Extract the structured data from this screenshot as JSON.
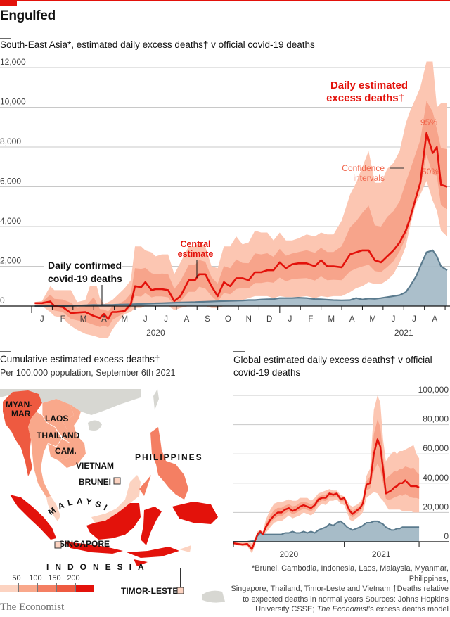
{
  "header": {
    "title": "Engulfed",
    "brand": "The Economist"
  },
  "main_chart_title": "South-East Asia*, estimated daily excess deaths† v official covid-19 deaths",
  "map": {
    "title": "Cumulative estimated excess deaths†",
    "subtitle": "Per 100,000 population, September 6th 2021",
    "labels": {
      "myanmar1": "MYAN-",
      "myanmar2": "MAR",
      "laos": "LAOS",
      "thailand": "THAILAND",
      "cambodia": "CAM.",
      "vietnam": "VIETNAM",
      "philippines": "PHILIPPINES",
      "brunei": "BRUNEI",
      "malaysia": "MALAYSIA",
      "singapore": "SINGAPORE",
      "indonesia": "INDONESIA",
      "timor": "TIMOR-LESTE"
    },
    "legend": {
      "ticks": [
        "50",
        "100",
        "150",
        "200"
      ],
      "colors": [
        "#fcd3c1",
        "#f9a88b",
        "#f47f63",
        "#ee5a40",
        "#e3120b"
      ]
    },
    "colors": {
      "land_other": "#d7d7d2",
      "myanmar": "#ee5a40",
      "laos": "#f9a88b",
      "thailand": "#f9a88b",
      "cambodia": "#f9a88b",
      "vietnam": "#f9a88b",
      "philippines": "#f47f63",
      "malaysia": "#fcd3c1",
      "indonesia": "#e3120b",
      "brunei": "#fcd3c1",
      "singapore": "#fcd3c1",
      "timor": "#fcd3c1"
    }
  },
  "footnote": {
    "line1": "*Brunei, Cambodia, Indonesia, Laos, Malaysia, Myanmar, Philippines,",
    "line2": "Singapore, Thailand, Timor-Leste and Vietnam   †Deaths relative",
    "line3": "to expected deaths in normal years   Sources: Johns Hopkins",
    "line4a": "University CSSE; ",
    "line4b": "The Economist",
    "line4c": "’s excess deaths model"
  },
  "chart_data": [
    {
      "type": "line",
      "id": "sea",
      "title": "South-East Asia*, estimated daily excess deaths† v official covid-19 deaths",
      "ylim": [
        -1000,
        12500
      ],
      "yticks": [
        0,
        2000,
        4000,
        6000,
        8000,
        10000,
        12000
      ],
      "ytick_labels": [
        "0",
        "2,000",
        "4,000",
        "6,000",
        "8,000",
        "10,000",
        "12,000"
      ],
      "x_unit": "months since Jan 2020",
      "xlim": [
        0,
        20.1
      ],
      "month_labels": [
        "J",
        "F",
        "M",
        "A",
        "M",
        "J",
        "J",
        "A",
        "S",
        "O",
        "N",
        "D",
        "J",
        "F",
        "M",
        "A",
        "M",
        "J",
        "J",
        "A"
      ],
      "year_labels": [
        {
          "label": "2020",
          "at": 6
        },
        {
          "label": "2021",
          "at": 18
        }
      ],
      "annotations": {
        "central": [
          "Central",
          "estimate"
        ],
        "confirmed": [
          "Daily confirmed",
          "covid-19 deaths"
        ],
        "excess": [
          "Daily estimated",
          "excess deaths†"
        ],
        "ci": [
          "Confidence",
          "intervals"
        ],
        "p95": "95%",
        "p50": "50%"
      },
      "colors": {
        "central": "#e3120b",
        "ci95": "#fcc6b2",
        "ci50": "#f7a48b",
        "official_fill": "#a7bcc8",
        "official_line": "#5b7b8e",
        "grid": "#c8c8c8"
      },
      "series": [
        {
          "name": "Central estimate",
          "x": [
            0.15,
            0.5,
            0.9,
            1.1,
            1.5,
            1.9,
            2.2,
            2.6,
            3.0,
            3.3,
            3.5,
            3.7,
            3.9,
            4.1,
            4.5,
            4.8,
            5.0,
            5.3,
            5.5,
            5.8,
            6.0,
            6.3,
            6.6,
            6.9,
            7.2,
            7.6,
            7.9,
            8.1,
            8.4,
            8.7,
            9.0,
            9.3,
            9.6,
            9.9,
            10.2,
            10.5,
            10.8,
            11.1,
            11.4,
            11.7,
            12.0,
            12.3,
            12.6,
            12.9,
            13.3,
            13.7,
            14.0,
            14.3,
            14.6,
            15.0,
            15.4,
            15.7,
            16.0,
            16.3,
            16.6,
            16.9,
            17.2,
            17.5,
            17.8,
            18.1,
            18.3,
            18.6,
            18.8,
            19.1,
            19.4,
            19.6,
            19.8,
            20.1
          ],
          "values": [
            150,
            150,
            230,
            0,
            -50,
            -350,
            -330,
            -300,
            -500,
            -600,
            -400,
            -650,
            -300,
            -300,
            -250,
            100,
            1000,
            950,
            1200,
            800,
            850,
            850,
            800,
            250,
            500,
            1300,
            1300,
            1600,
            1600,
            1000,
            500,
            1200,
            1000,
            1400,
            1400,
            1300,
            1700,
            1700,
            1800,
            1800,
            2200,
            1900,
            2100,
            2150,
            2150,
            2000,
            2300,
            2000,
            2000,
            1950,
            2600,
            2700,
            2800,
            2800,
            2300,
            2200,
            2500,
            2800,
            3200,
            3800,
            4400,
            5500,
            6200,
            8700,
            7700,
            8000,
            6100,
            6000
          ]
        },
        {
          "name": "95% upper",
          "values": [
            200,
            250,
            1000,
            800,
            800,
            800,
            200,
            300,
            1600,
            400,
            100,
            200,
            300,
            500,
            900,
            1300,
            3000,
            3000,
            2800,
            2700,
            2500,
            2600,
            2600,
            1600,
            2200,
            3000,
            3000,
            3200,
            3000,
            2000,
            1900,
            3000,
            3000,
            3500,
            3100,
            3200,
            3800,
            3700,
            3700,
            3300,
            3700,
            3300,
            3300,
            3400,
            3600,
            3500,
            3700,
            3600,
            3600,
            4300,
            5600,
            6200,
            7000,
            7800,
            6200,
            6200,
            6900,
            7200,
            7800,
            9200,
            9800,
            10500,
            11000,
            12300,
            12300,
            10000,
            10200,
            10200
          ]
        },
        {
          "name": "95% lower",
          "values": [
            100,
            0,
            -300,
            -500,
            -600,
            -1000,
            -1200,
            -1400,
            -1500,
            -1600,
            -1700,
            -1600,
            -1200,
            -900,
            -400,
            -300,
            -100,
            -100,
            0,
            0,
            50,
            50,
            0,
            -200,
            -100,
            0,
            0,
            200,
            0,
            -100,
            -100,
            0,
            100,
            200,
            300,
            400,
            500,
            500,
            500,
            400,
            500,
            450,
            450,
            450,
            500,
            400,
            500,
            450,
            500,
            500,
            700,
            900,
            1000,
            1200,
            1100,
            1100,
            1300,
            1600,
            2200,
            3000,
            4000,
            5200,
            5600,
            6300,
            5300,
            4800,
            3800,
            3500
          ]
        },
        {
          "name": "Official covid-19 deaths",
          "values": [
            0,
            0,
            0,
            0,
            0,
            10,
            20,
            40,
            60,
            50,
            60,
            60,
            60,
            70,
            80,
            90,
            100,
            110,
            120,
            130,
            140,
            150,
            160,
            170,
            180,
            190,
            200,
            210,
            220,
            230,
            240,
            250,
            260,
            270,
            280,
            300,
            300,
            330,
            340,
            350,
            400,
            400,
            400,
            420,
            400,
            350,
            340,
            320,
            300,
            290,
            300,
            400,
            330,
            380,
            360,
            400,
            450,
            500,
            550,
            700,
            1000,
            1500,
            2000,
            2700,
            2800,
            2500,
            2000,
            1800
          ]
        }
      ]
    },
    {
      "type": "line",
      "id": "global",
      "title": "Global estimated daily excess deaths† v official covid-19 deaths",
      "ylim": [
        -5000,
        102000
      ],
      "yticks": [
        0,
        20000,
        40000,
        60000,
        80000,
        100000
      ],
      "ytick_labels": [
        "0",
        "20,000",
        "40,000",
        "60,000",
        "80,000",
        "100,000"
      ],
      "xlim": [
        0,
        20.4
      ],
      "year_labels": [
        {
          "label": "2020",
          "at": 6
        },
        {
          "label": "2021",
          "at": 16
        }
      ],
      "series": [
        {
          "name": "Central estimate",
          "x": [
            0,
            1,
            1.5,
            2,
            2.3,
            2.6,
            2.9,
            3.2,
            3.5,
            4.0,
            4.4,
            4.8,
            5.2,
            5.6,
            6.0,
            6.4,
            6.8,
            7.2,
            7.6,
            8.0,
            8.4,
            8.8,
            9.2,
            9.6,
            10.0,
            10.4,
            10.8,
            11.2,
            11.6,
            12.0,
            12.3,
            12.6,
            12.9,
            13.3,
            13.7,
            14.0,
            14.4,
            14.8,
            15.2,
            15.6,
            15.9,
            16.2,
            16.5,
            16.8,
            17.1,
            17.4,
            17.7,
            18.0,
            18.3,
            18.6,
            18.9,
            19.2,
            19.5,
            19.8,
            20.1
          ],
          "values": [
            -1000,
            -2000,
            -1500,
            -5000,
            0,
            5000,
            7000,
            5000,
            10000,
            15000,
            18000,
            20000,
            20000,
            22000,
            23000,
            21000,
            22000,
            24000,
            25000,
            24000,
            23000,
            25000,
            29000,
            30000,
            30000,
            33000,
            32000,
            33000,
            29000,
            30000,
            25000,
            21000,
            19000,
            21000,
            23000,
            26000,
            39000,
            40000,
            60000,
            70000,
            65000,
            50000,
            33000,
            34000,
            35000,
            37000,
            38000,
            40000,
            40000,
            42000,
            40000,
            38000,
            38000,
            38000,
            37000
          ]
        },
        {
          "name": "95% upper",
          "values": [
            0,
            0,
            0,
            -1000,
            2000,
            7000,
            8000,
            7000,
            15000,
            22000,
            26000,
            27000,
            27000,
            28000,
            29000,
            28000,
            28000,
            30000,
            30000,
            30000,
            28000,
            30000,
            33000,
            34000,
            35000,
            36000,
            35000,
            35000,
            32000,
            31000,
            28000,
            25000,
            24000,
            25000,
            27000,
            30000,
            45000,
            50000,
            90000,
            100000,
            95000,
            70000,
            55000,
            58000,
            60000,
            62000,
            60000,
            62000,
            62000,
            63000,
            64000,
            65000,
            66000,
            60000,
            57000
          ]
        },
        {
          "name": "95% lower",
          "values": [
            -2000,
            -3000,
            -3000,
            -8000,
            -3000,
            3000,
            5000,
            3000,
            6000,
            10000,
            13000,
            14000,
            14000,
            16000,
            18000,
            16000,
            17000,
            18000,
            20000,
            19000,
            18000,
            20000,
            24000,
            26000,
            25000,
            28000,
            28000,
            29000,
            26000,
            25000,
            20000,
            15000,
            14000,
            16000,
            18000,
            20000,
            30000,
            32000,
            34000,
            33000,
            30000,
            28000,
            25000,
            22000,
            22000,
            22000,
            22000,
            22000,
            21000,
            21000,
            21000,
            21000,
            20000,
            20000,
            20000
          ]
        },
        {
          "name": "Official covid-19 deaths",
          "values": [
            0,
            0,
            0,
            500,
            1000,
            4000,
            6000,
            5000,
            5000,
            5000,
            5000,
            5000,
            5000,
            6000,
            6000,
            7000,
            6000,
            6000,
            7000,
            6000,
            7000,
            6000,
            8000,
            9000,
            10000,
            12000,
            11000,
            13000,
            14000,
            12000,
            10000,
            9000,
            8000,
            9000,
            10000,
            11000,
            13000,
            13000,
            14000,
            14000,
            13000,
            12000,
            10000,
            9000,
            8000,
            8000,
            9000,
            9000,
            10000,
            10000,
            10000,
            10000,
            10000,
            10000,
            10000
          ]
        }
      ]
    }
  ]
}
